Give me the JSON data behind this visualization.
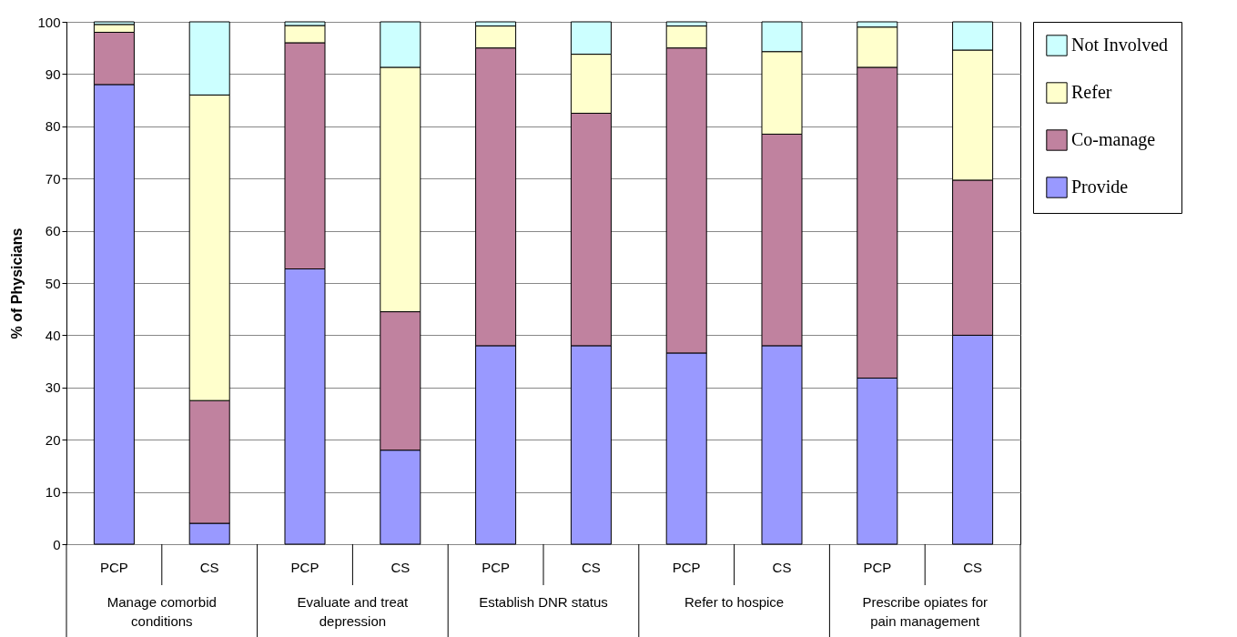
{
  "chart_data": {
    "type": "bar",
    "stacked": true,
    "ylabel": "% of Physicians",
    "categories": [
      "PCP",
      "CS",
      "PCP",
      "CS",
      "PCP",
      "CS",
      "PCP",
      "CS",
      "PCP",
      "CS"
    ],
    "annotations": [
      "Manage comorbid conditions",
      "Evaluate and treat depression",
      "Establish DNR status",
      "Refer to hospice",
      "Prescribe opiates for pain management"
    ],
    "series": [
      {
        "name": "Provide",
        "color": "#9999ff",
        "values": [
          88,
          4,
          52.7,
          18,
          38,
          38,
          36.6,
          38,
          31.8,
          40
        ]
      },
      {
        "name": "Co-manage",
        "color": "#c0829f",
        "values": [
          10,
          23.5,
          43.3,
          26.5,
          57,
          44.5,
          58.4,
          40.5,
          59.5,
          29.7
        ]
      },
      {
        "name": "Refer",
        "color": "#ffffcc",
        "values": [
          1.5,
          58.5,
          3.3,
          46.8,
          4.2,
          11.3,
          4.2,
          15.8,
          7.7,
          24.9
        ]
      },
      {
        "name": "Not Involved",
        "color": "#ccffff",
        "values": [
          0.5,
          14,
          0.7,
          8.7,
          0.8,
          6.2,
          0.8,
          5.7,
          1,
          5.4
        ]
      }
    ],
    "ylim": [
      0,
      100
    ],
    "yticks": [
      0,
      10,
      20,
      30,
      40,
      50,
      60,
      70,
      80,
      90,
      100
    ],
    "grid": "y",
    "legend": "top right"
  }
}
